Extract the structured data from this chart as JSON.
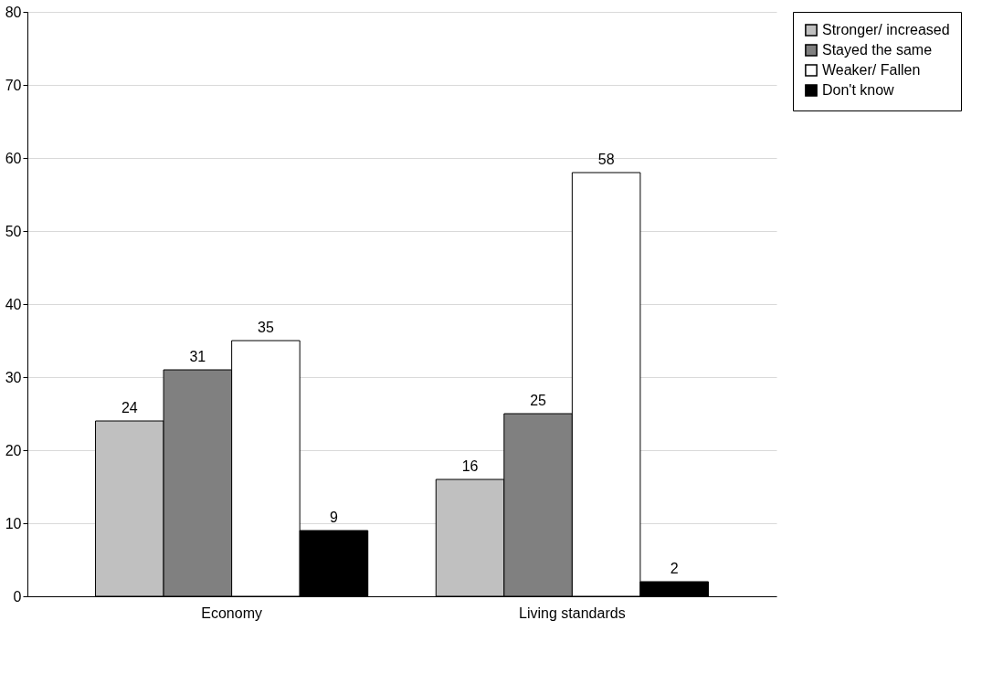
{
  "chart_data": {
    "type": "bar",
    "categories": [
      "Economy",
      "Living standards"
    ],
    "series": [
      {
        "name": "Stronger/ increased",
        "color": "#c0c0c0",
        "values": [
          24,
          16
        ]
      },
      {
        "name": "Stayed the same",
        "color": "#808080",
        "values": [
          31,
          25
        ]
      },
      {
        "name": "Weaker/ Fallen",
        "color": "#ffffff",
        "values": [
          35,
          58
        ]
      },
      {
        "name": "Don't know",
        "color": "#000000",
        "values": [
          9,
          2
        ]
      }
    ],
    "ylim": [
      0,
      80
    ],
    "yticks": [
      0,
      10,
      20,
      30,
      40,
      50,
      60,
      70,
      80
    ],
    "grid": "y",
    "legend": "right",
    "data_labels": true
  }
}
